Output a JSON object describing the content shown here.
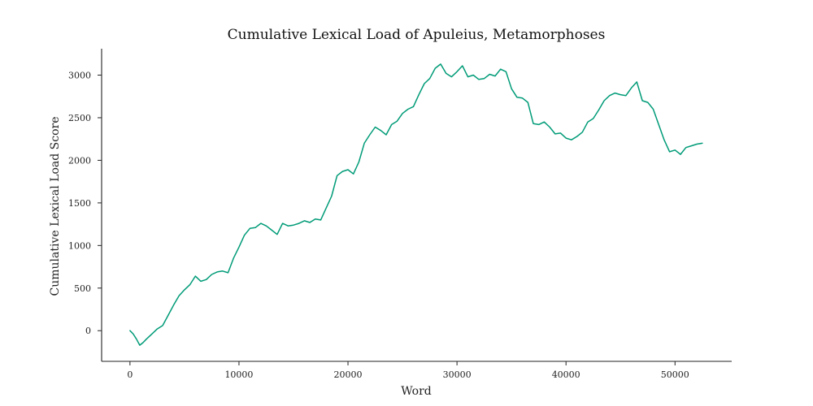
{
  "chart_data": {
    "type": "line",
    "title": "Cumulative Lexical Load of Apuleius, Metamorphoses",
    "xlabel": "Word",
    "ylabel": "Cumulative Lexical Load Score",
    "xlim": [
      -2600,
      55200
    ],
    "ylim": [
      -360,
      3310
    ],
    "xticks": [
      0,
      10000,
      20000,
      30000,
      40000,
      50000
    ],
    "yticks": [
      0,
      500,
      1000,
      1500,
      2000,
      2500,
      3000
    ],
    "grid": false,
    "legend": "none",
    "colors": {
      "series": "#009B77",
      "axis": "#222222",
      "text": "#111111"
    },
    "series": [
      {
        "x": [
          0,
          300,
          600,
          900,
          1200,
          1500,
          2000,
          2500,
          3000,
          3500,
          4000,
          4500,
          5000,
          5500,
          6000,
          6500,
          7000,
          7500,
          8000,
          8500,
          9000,
          9500,
          10000,
          10500,
          11000,
          11500,
          12000,
          12500,
          13000,
          13500,
          14000,
          14500,
          15000,
          15500,
          16000,
          16500,
          17000,
          17500,
          18000,
          18500,
          19000,
          19500,
          20000,
          20500,
          21000,
          21500,
          22000,
          22500,
          23000,
          23500,
          24000,
          24500,
          25000,
          25500,
          26000,
          26500,
          27000,
          27500,
          28000,
          28500,
          29000,
          29500,
          30000,
          30500,
          31000,
          31500,
          32000,
          32500,
          33000,
          33500,
          34000,
          34500,
          35000,
          35500,
          36000,
          36500,
          37000,
          37500,
          38000,
          38500,
          39000,
          39500,
          40000,
          40500,
          41000,
          41500,
          42000,
          42500,
          43000,
          43500,
          44000,
          44500,
          45000,
          45500,
          46000,
          46500,
          47000,
          47500,
          48000,
          48500,
          49000,
          49500,
          50000,
          50500,
          51000,
          51500,
          52000,
          52500
        ],
        "values": [
          0,
          -40,
          -100,
          -170,
          -140,
          -100,
          -40,
          20,
          60,
          180,
          300,
          410,
          480,
          540,
          640,
          580,
          600,
          660,
          690,
          700,
          680,
          850,
          980,
          1120,
          1200,
          1210,
          1260,
          1230,
          1180,
          1130,
          1260,
          1230,
          1240,
          1260,
          1290,
          1270,
          1310,
          1300,
          1440,
          1580,
          1820,
          1870,
          1890,
          1840,
          1980,
          2200,
          2300,
          2390,
          2350,
          2300,
          2420,
          2460,
          2550,
          2600,
          2630,
          2770,
          2900,
          2960,
          3080,
          3130,
          3020,
          2980,
          3040,
          3110,
          2980,
          3000,
          2950,
          2960,
          3010,
          2990,
          3070,
          3040,
          2840,
          2740,
          2730,
          2680,
          2430,
          2420,
          2450,
          2390,
          2310,
          2320,
          2260,
          2240,
          2280,
          2330,
          2450,
          2490,
          2590,
          2700,
          2760,
          2790,
          2770,
          2760,
          2850,
          2920,
          2700,
          2680,
          2600,
          2420,
          2240,
          2100,
          2120,
          2070,
          2150,
          2170,
          2190,
          2200
        ]
      }
    ]
  }
}
